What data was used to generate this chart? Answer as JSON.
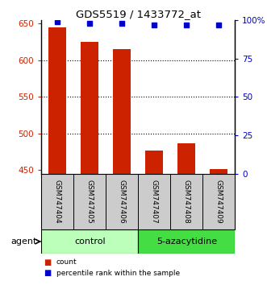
{
  "title": "GDS5519 / 1433772_at",
  "samples": [
    "GSM747404",
    "GSM747405",
    "GSM747406",
    "GSM747407",
    "GSM747408",
    "GSM747409"
  ],
  "counts": [
    645,
    625,
    615,
    477,
    487,
    452
  ],
  "percentiles": [
    99,
    98,
    98,
    97,
    97,
    97
  ],
  "ylim_left": [
    445,
    655
  ],
  "ylim_right": [
    0,
    100
  ],
  "yticks_left": [
    450,
    500,
    550,
    600,
    650
  ],
  "yticks_right": [
    0,
    25,
    50,
    75,
    100
  ],
  "yticklabels_right": [
    "0",
    "25",
    "50",
    "75",
    "100%"
  ],
  "bar_color": "#cc2200",
  "dot_color": "#0000cc",
  "bar_bottom": 445,
  "groups": [
    {
      "label": "control",
      "indices": [
        0,
        1,
        2
      ],
      "color": "#bbffbb"
    },
    {
      "label": "5-azacytidine",
      "indices": [
        3,
        4,
        5
      ],
      "color": "#44dd44"
    }
  ],
  "agent_label": "agent",
  "legend_count_label": "count",
  "legend_pct_label": "percentile rank within the sample",
  "sample_box_color": "#cccccc"
}
